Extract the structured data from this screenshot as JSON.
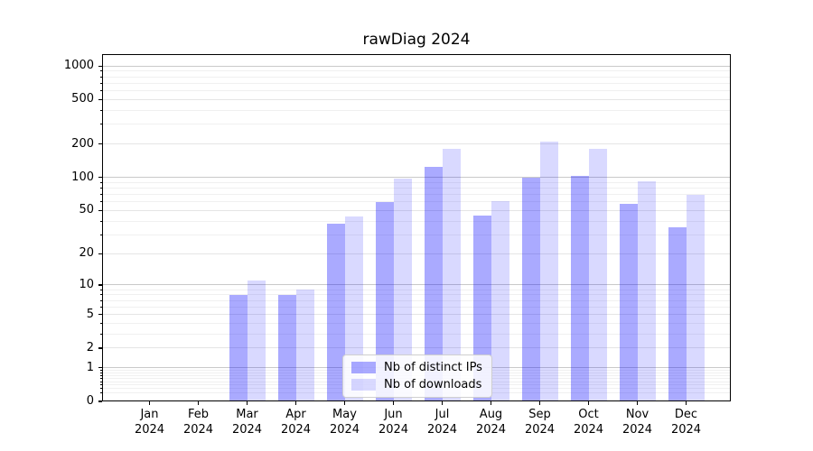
{
  "chart_data": {
    "type": "bar",
    "title": "rawDiag 2024",
    "y_scale": "log1p (position = log10(1+x))",
    "ylim": [
      0,
      1270
    ],
    "y_ticks": [
      0,
      1,
      2,
      5,
      10,
      20,
      50,
      100,
      200,
      500,
      1000
    ],
    "grid": "on",
    "legend_position": "lower center",
    "x_categories": [
      {
        "month": "Jan",
        "year": "2024"
      },
      {
        "month": "Feb",
        "year": "2024"
      },
      {
        "month": "Mar",
        "year": "2024"
      },
      {
        "month": "Apr",
        "year": "2024"
      },
      {
        "month": "May",
        "year": "2024"
      },
      {
        "month": "Jun",
        "year": "2024"
      },
      {
        "month": "Jul",
        "year": "2024"
      },
      {
        "month": "Aug",
        "year": "2024"
      },
      {
        "month": "Sep",
        "year": "2024"
      },
      {
        "month": "Oct",
        "year": "2024"
      },
      {
        "month": "Nov",
        "year": "2024"
      },
      {
        "month": "Dec",
        "year": "2024"
      }
    ],
    "series": [
      {
        "key": "distinct-ips",
        "name": "Nb of distinct IPs",
        "color": "#0000ff55",
        "values": [
          0,
          0,
          8,
          8,
          38,
          60,
          125,
          45,
          100,
          103,
          58,
          35
        ]
      },
      {
        "key": "downloads",
        "name": "Nb of downloads",
        "color": "#0000ff26",
        "values": [
          0,
          0,
          11,
          9,
          44,
          97,
          180,
          61,
          210,
          182,
          93,
          70
        ]
      }
    ]
  },
  "colors": {
    "spine": "#000000",
    "grid_major": "#c9c9c9",
    "grid_labeled": "#e5e5e5",
    "grid_minor": "#f0f0f0",
    "legend_border": "#cfcfcf"
  }
}
